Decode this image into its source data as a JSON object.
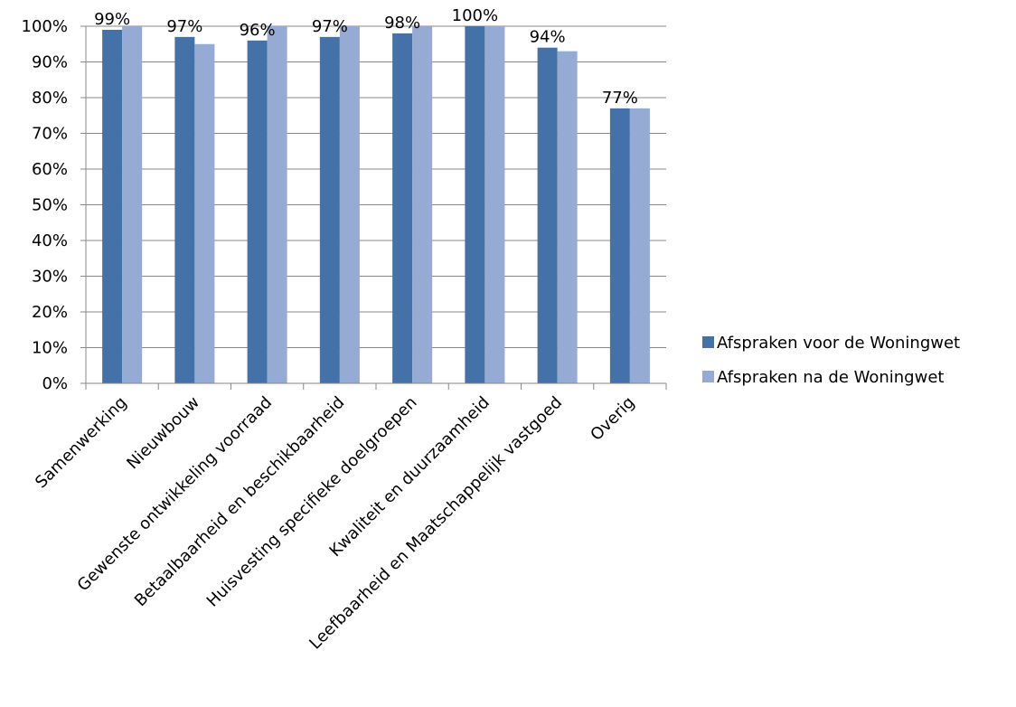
{
  "chart_data": {
    "type": "bar",
    "categories": [
      "Samenwerking",
      "Nieuwbouw",
      "Gewenste ontwikkeling voorraad",
      "Betaalbaarheid en beschikbaarheid",
      "Huisvesting specifieke doelgroepen",
      "Kwaliteit en duurzaamheid",
      "Leefbaarheid en Maatschappelijk vastgoed",
      "Overig"
    ],
    "series": [
      {
        "name": "Afspraken voor de Woningwet",
        "color": "#4472a8",
        "values": [
          99,
          97,
          96,
          97,
          98,
          100,
          94,
          77
        ]
      },
      {
        "name": "Afspraken na de Woningwet",
        "color": "#95abd4",
        "values": [
          100,
          95,
          100,
          100,
          100,
          100,
          93,
          77
        ]
      }
    ],
    "data_labels": [
      "99%",
      "97%",
      "96%",
      "97%",
      "98%",
      "100%",
      "94%",
      "77%"
    ],
    "y_ticks": [
      "0%",
      "10%",
      "20%",
      "30%",
      "40%",
      "50%",
      "60%",
      "70%",
      "80%",
      "90%",
      "100%"
    ],
    "ylim": [
      0,
      100
    ],
    "grid": true,
    "legend_position": "right"
  }
}
